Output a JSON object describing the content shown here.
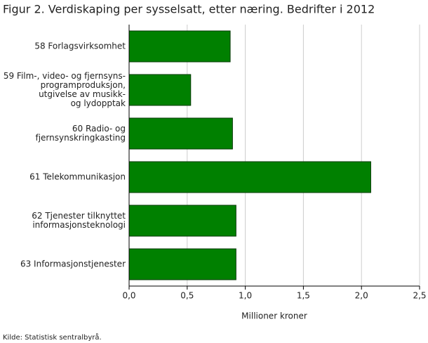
{
  "chart_data": {
    "type": "bar",
    "orientation": "horizontal",
    "title": "Figur 2. Verdiskaping per sysselsatt, etter næring. Bedrifter i 2012",
    "categories": [
      "58 Forlagsvirksomhet",
      "59 Film-, video- og fjernsyns-\nprogramproduksjon,\nutgivelse av musikk-\nog lydopptak",
      "60 Radio- og\nfjernsynskringkasting",
      "61 Telekommunikasjon",
      "62 Tjenester tilknyttet\ninformasjonsteknologi",
      "63 Informasjonstjenester"
    ],
    "values": [
      0.87,
      0.53,
      0.89,
      2.08,
      0.92,
      0.92
    ],
    "color": "#008000",
    "xlabel": "Millioner kroner",
    "xlim": [
      0,
      2.5
    ],
    "xticks": [
      {
        "value": 0,
        "label": "0,0"
      },
      {
        "value": 0.5,
        "label": "0,5"
      },
      {
        "value": 1,
        "label": "1,0"
      },
      {
        "value": 1.5,
        "label": "1,5"
      },
      {
        "value": 2,
        "label": "2,0"
      },
      {
        "value": 2.5,
        "label": "2,5"
      }
    ],
    "grid": true,
    "source": "Kilde: Statistisk sentralbyrå."
  }
}
